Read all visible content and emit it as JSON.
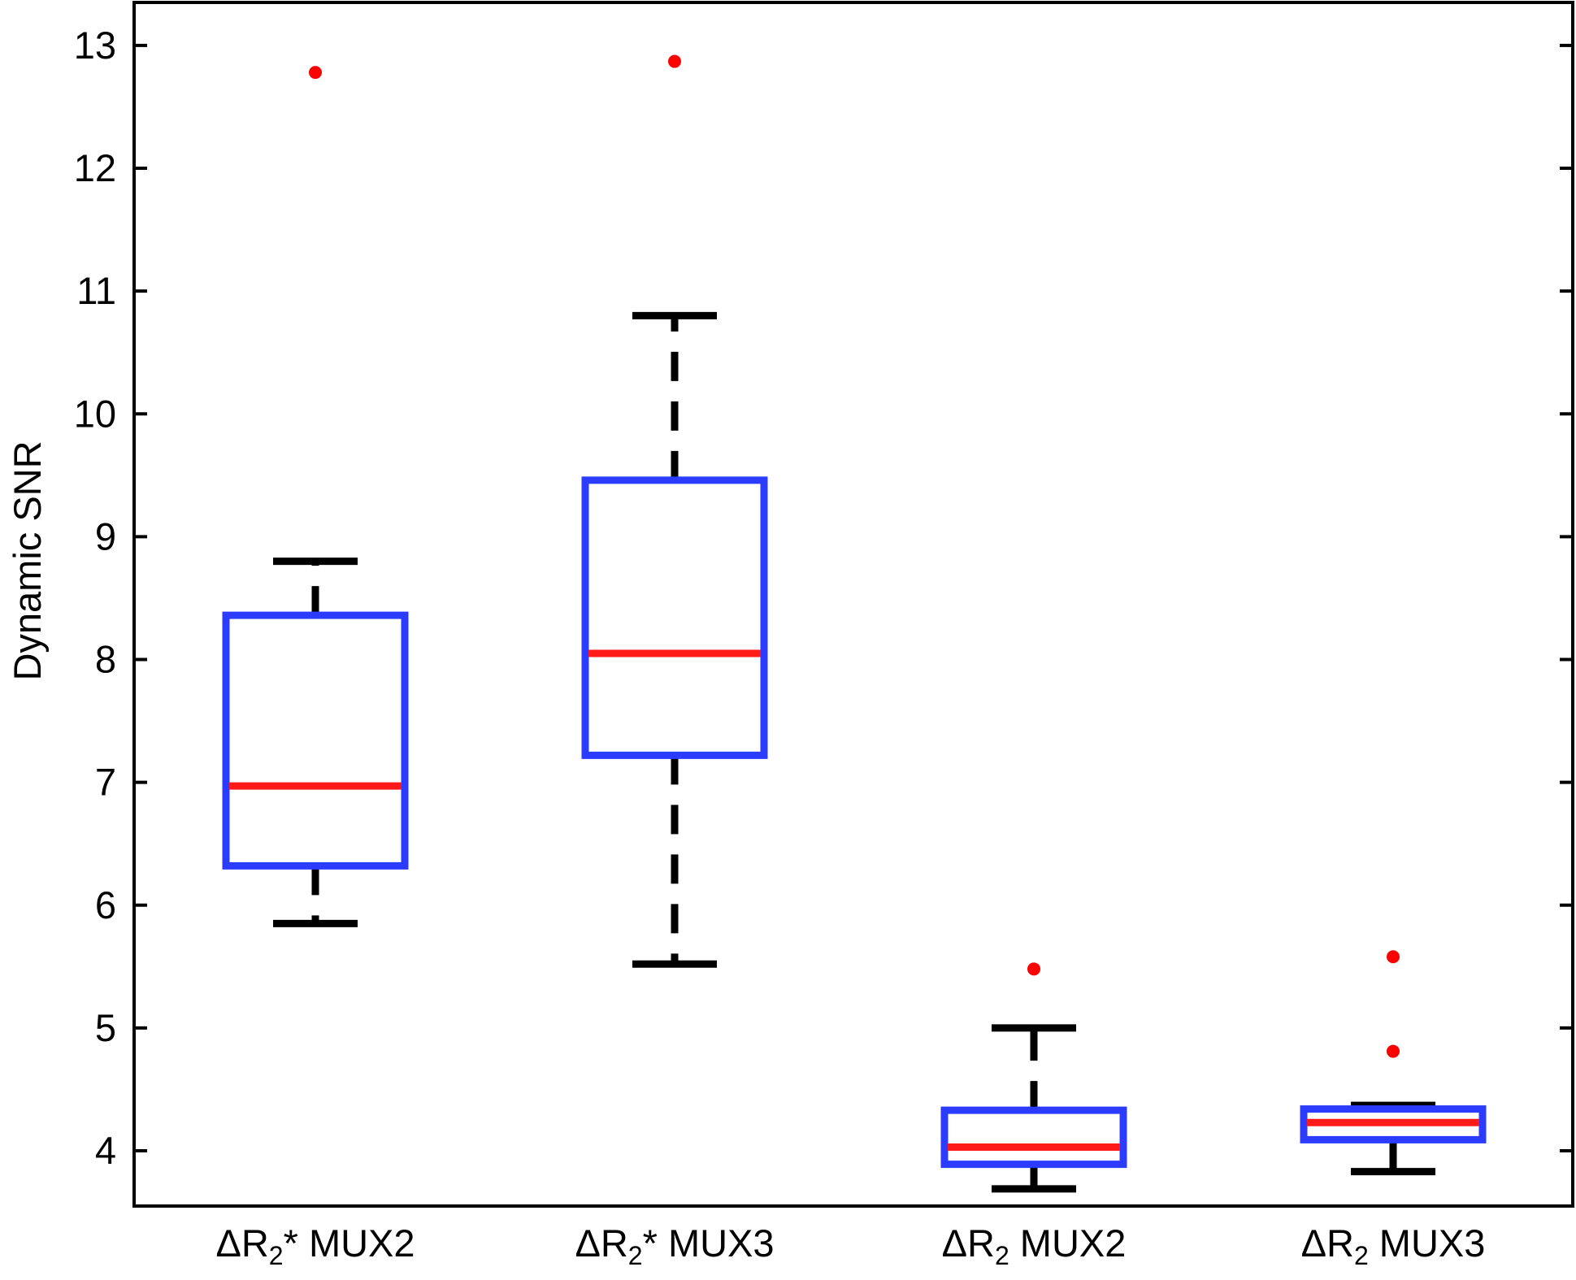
{
  "chart_data": {
    "type": "box",
    "title": "",
    "xlabel": "",
    "ylabel": "Dynamic SNR",
    "ylim": [
      3.55,
      13.35
    ],
    "yticks": [
      4,
      5,
      6,
      7,
      8,
      9,
      10,
      11,
      12,
      13
    ],
    "grid": false,
    "legend": "none",
    "colors": {
      "box": "#2b3bff",
      "median": "#ff1a1a",
      "whisker": "#000000",
      "outlier": "#ff0000",
      "axis": "#000000"
    },
    "categories": [
      {
        "prefix": "ΔR",
        "sub": "2",
        "suffix": "* MUX2"
      },
      {
        "prefix": "ΔR",
        "sub": "2",
        "suffix": "* MUX3"
      },
      {
        "prefix": "ΔR",
        "sub": "2",
        "suffix": " MUX2"
      },
      {
        "prefix": "ΔR",
        "sub": "2",
        "suffix": " MUX3"
      }
    ],
    "boxes": [
      {
        "whisker_low": 5.85,
        "q1": 6.32,
        "median": 6.97,
        "q3": 8.36,
        "whisker_high": 8.8,
        "outliers": [
          12.78
        ]
      },
      {
        "whisker_low": 5.52,
        "q1": 7.22,
        "median": 8.05,
        "q3": 9.46,
        "whisker_high": 10.8,
        "outliers": [
          12.87
        ]
      },
      {
        "whisker_low": 3.69,
        "q1": 3.89,
        "median": 4.03,
        "q3": 4.33,
        "whisker_high": 5.0,
        "outliers": [
          5.48
        ]
      },
      {
        "whisker_low": 3.83,
        "q1": 4.09,
        "median": 4.23,
        "q3": 4.34,
        "whisker_high": 4.37,
        "outliers": [
          5.58,
          4.81
        ]
      }
    ]
  }
}
